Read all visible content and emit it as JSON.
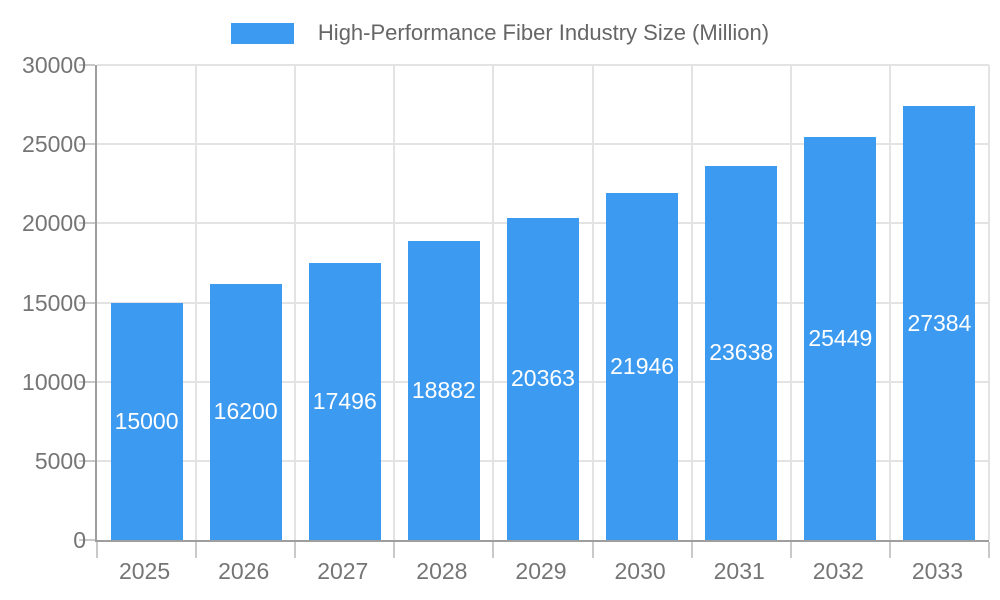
{
  "legend": {
    "label": "High-Performance Fiber Industry Size (Million)"
  },
  "chart_data": {
    "type": "bar",
    "title": "High-Performance Fiber Industry Size (Million)",
    "categories": [
      "2025",
      "2026",
      "2027",
      "2028",
      "2029",
      "2030",
      "2031",
      "2032",
      "2033"
    ],
    "values": [
      15000,
      16200,
      17496,
      18882,
      20363,
      21946,
      23638,
      25449,
      27384
    ],
    "xlabel": "",
    "ylabel": "",
    "ylim": [
      0,
      30000
    ],
    "ytick_step": 5000,
    "grid": true,
    "legend_position": "top",
    "colors": {
      "bar": "#3C9AF0",
      "value_label": "#ffffff",
      "axis_label": "#757575",
      "legend_label": "#666666",
      "gridline": "#e3e3e3",
      "axis_line": "#9e9e9e",
      "tick": "#c9c9c9"
    }
  }
}
